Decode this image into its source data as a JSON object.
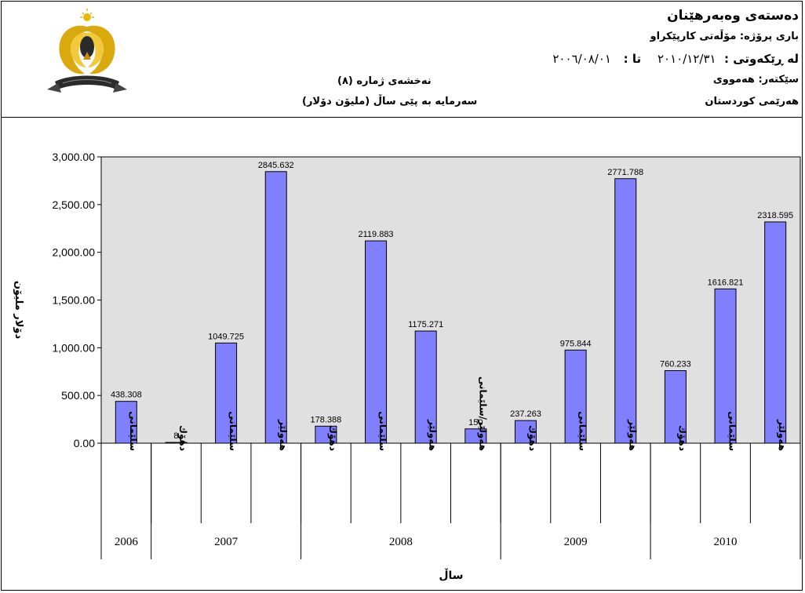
{
  "header": {
    "organization": "دەستەی وەبەرهێنان",
    "project_line": "باری پرۆژە: مۆڵەتی کارپێکراو",
    "period_label": "لە ڕێکەوتی :",
    "date_from": "٢٠٠٦/٠٨/٠١",
    "date_to_label": "تا :",
    "date_to": "٢٠١٠/١٢/٣١",
    "sector_line": "سێکتەر: هەمووی",
    "region_line": "هەرێمی کوردستان",
    "figure_number": "نەخشەی ژمارە (٨)",
    "figure_title": "سەرمایە بە پێی ساڵ (ملیۆن دۆلار)"
  },
  "logo": {
    "icon": "kurdistan-eagle-emblem-icon"
  },
  "chart_data": {
    "type": "bar",
    "ylabel": "دۆلار ملیۆن",
    "xlabel": "ساڵ",
    "ylim": [
      0,
      3000
    ],
    "yticks": [
      0,
      500,
      1000,
      1500,
      2000,
      2500,
      3000
    ],
    "ytick_labels": [
      "0.00",
      "500.00",
      "1,000.00",
      "1,500.00",
      "2,000.00",
      "2,500.00",
      "3,000.00"
    ],
    "grid": false,
    "plot_background": "#e0e0e0",
    "bar_color": "#8080ff",
    "categories": [
      "سلێمانی",
      "دهۆك",
      "سلێمانی",
      "هەولێر",
      "دهۆك",
      "سلێمانی",
      "هەولێر",
      "هەولێر/سلێمانی",
      "دهۆك",
      "سلێمانی",
      "هەولێر",
      "دهۆك",
      "سلێمانی",
      "هەولێر"
    ],
    "values": [
      438.308,
      8,
      1049.725,
      2845.632,
      178.388,
      2119.883,
      1175.271,
      150,
      237.263,
      975.844,
      2771.788,
      760.233,
      1616.821,
      2318.595
    ],
    "value_labels": [
      "438.308",
      "8",
      "1049.725",
      "2845.632",
      "178.388",
      "2119.883",
      "1175.271",
      "150",
      "237.263",
      "975.844",
      "2771.788",
      "760.233",
      "1616.821",
      "2318.595"
    ],
    "year_groups": [
      {
        "year": "2006",
        "count": 1
      },
      {
        "year": "2007",
        "count": 3
      },
      {
        "year": "2008",
        "count": 4
      },
      {
        "year": "2009",
        "count": 3
      },
      {
        "year": "2010",
        "count": 3
      }
    ]
  }
}
